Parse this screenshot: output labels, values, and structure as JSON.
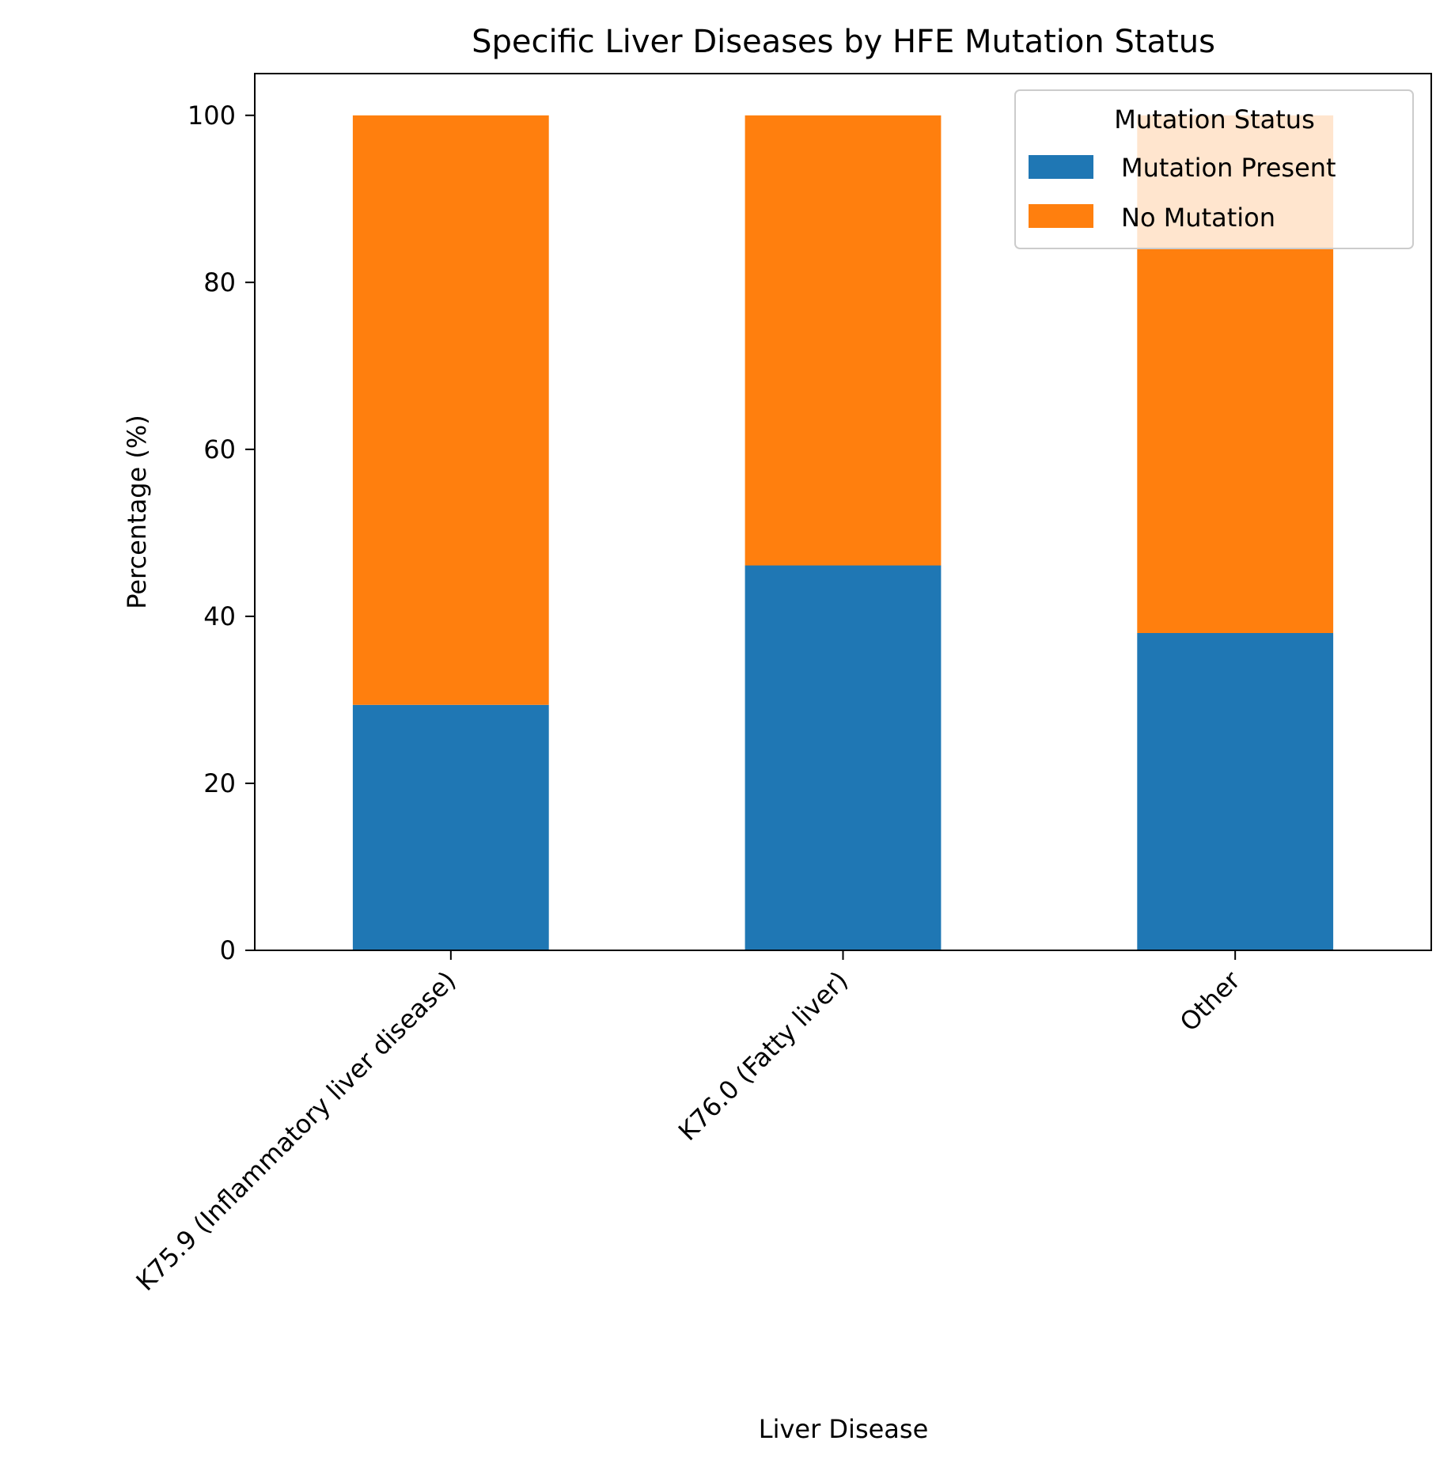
{
  "colors": {
    "mutation_present": "#1f77b4",
    "no_mutation": "#ff7f0e",
    "axis": "#000000",
    "legend_border": "#cccccc"
  },
  "chart_data": {
    "type": "bar",
    "stacked": true,
    "title": "Specific Liver Diseases by HFE Mutation Status",
    "xlabel": "Liver Disease",
    "ylabel": "Percentage (%)",
    "ylim": [
      0,
      105
    ],
    "yticks": [
      0,
      20,
      40,
      60,
      80,
      100
    ],
    "grid": false,
    "categories": [
      "K75.9 (Inflammatory liver disease)",
      "K76.0 (Fatty liver)",
      "Other"
    ],
    "series": [
      {
        "name": "Mutation Present",
        "values": [
          29.4,
          46.1,
          38.0
        ]
      },
      {
        "name": "No Mutation",
        "values": [
          70.6,
          53.9,
          62.0
        ]
      }
    ],
    "legend": {
      "title": "Mutation Status",
      "placement": "top-right"
    }
  }
}
